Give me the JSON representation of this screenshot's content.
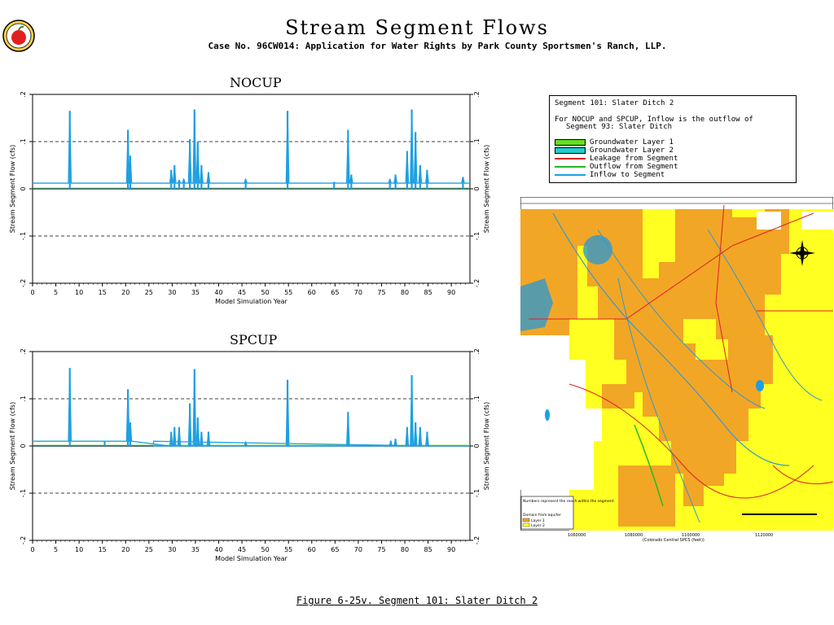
{
  "header": {
    "title": "Stream Segment Flows",
    "subtitle": "Case No. 96CW014: Application for Water Rights by Park County Sportsmen's Ranch, LLP."
  },
  "logo_icon": "apple-seal-icon",
  "legend": {
    "line1": "Segment 101: Slater Ditch 2",
    "line2": "For NOCUP and SPCUP, Inflow is the outflow of",
    "line3": "Segment  93: Slater Ditch",
    "items": [
      {
        "label": "Groundwater Layer 1",
        "kind": "box",
        "color": "#66dd22"
      },
      {
        "label": "Groundwater Layer 2",
        "kind": "box",
        "color": "#22cccc"
      },
      {
        "label": "Leakage from Segment",
        "kind": "line",
        "color": "#dd2222"
      },
      {
        "label": "Outflow from Segment",
        "kind": "line",
        "color": "#22bb22"
      },
      {
        "label": "Inflow to Segment",
        "kind": "line",
        "color": "#1ea0e0"
      }
    ]
  },
  "caption": "Figure 6-25v.  Segment 101: Slater Ditch 2",
  "map": {
    "legend_text": "Numbers represent the reach within the segment.",
    "legend_text2": "Domain from aquifer",
    "legend_layer1": "Layer 1",
    "legend_layer2": "Layer 2",
    "xlabel": "(Colorado Central SPCS (feet))",
    "x_ticks": [
      "1060000",
      "1080000",
      "1100000",
      "1120000"
    ],
    "colors": {
      "layer1": "#f2a626",
      "layer2": "#ffff22",
      "water": "#3399cc",
      "roads": "#dd2222"
    }
  },
  "chart_data": [
    {
      "type": "line",
      "title": "NOCUP",
      "xlabel": "Model Simulation Year",
      "ylabel": "Stream Segment Flow (cfs)",
      "ylabel_right": "Stream Segment Flow (cfs)",
      "xlim": [
        0,
        94
      ],
      "ylim": [
        -0.2,
        0.2
      ],
      "x_ticks": [
        0,
        5,
        10,
        15,
        20,
        25,
        30,
        35,
        40,
        45,
        50,
        55,
        60,
        65,
        70,
        75,
        80,
        85,
        90
      ],
      "y_ticks": [
        ".2",
        ".1",
        "0",
        "-.1",
        "-.2"
      ],
      "dashed_lines": [
        0.1,
        -0.1
      ],
      "baseline": 0.012,
      "series": [
        {
          "name": "Inflow to Segment",
          "color": "#1ea0e0",
          "spikes": [
            [
              8,
              0.165
            ],
            [
              20.5,
              0.125
            ],
            [
              21,
              0.07
            ],
            [
              29.8,
              0.04
            ],
            [
              30.5,
              0.05
            ],
            [
              31.5,
              0.018
            ],
            [
              32.5,
              0.02
            ],
            [
              33.8,
              0.105
            ],
            [
              34.8,
              0.168
            ],
            [
              35.5,
              0.1
            ],
            [
              36.3,
              0.05
            ],
            [
              37.8,
              0.035
            ],
            [
              45.8,
              0.02
            ],
            [
              54.8,
              0.165
            ],
            [
              64.8,
              0.014
            ],
            [
              67.8,
              0.125
            ],
            [
              68.5,
              0.03
            ],
            [
              76.8,
              0.02
            ],
            [
              78,
              0.03
            ],
            [
              80.5,
              0.08
            ],
            [
              81.5,
              0.168
            ],
            [
              82.3,
              0.12
            ],
            [
              83.3,
              0.05
            ],
            [
              84.8,
              0.04
            ],
            [
              92.5,
              0.025
            ]
          ]
        },
        {
          "name": "Groundwater Layer 1",
          "color": "#66dd22",
          "flat": 0
        }
      ]
    },
    {
      "type": "line",
      "title": "SPCUP",
      "xlabel": "Model Simulation Year",
      "ylabel": "Stream Segment Flow (cfs)",
      "ylabel_right": "Stream Segment Flow (cfs)",
      "xlim": [
        0,
        94
      ],
      "ylim": [
        -0.2,
        0.2
      ],
      "x_ticks": [
        0,
        5,
        10,
        15,
        20,
        25,
        30,
        35,
        40,
        45,
        50,
        55,
        60,
        65,
        70,
        75,
        80,
        85,
        90
      ],
      "y_ticks": [
        ".2",
        ".1",
        "0",
        "-.1",
        "-.2"
      ],
      "dashed_lines": [
        0.1,
        -0.1
      ],
      "baseline": 0.01,
      "baseline_end": 26,
      "series": [
        {
          "name": "Inflow to Segment",
          "color": "#1ea0e0",
          "spikes": [
            [
              8,
              0.165
            ],
            [
              15.5,
              0.01
            ],
            [
              20.5,
              0.12
            ],
            [
              21,
              0.05
            ],
            [
              29.8,
              0.03
            ],
            [
              30.5,
              0.04
            ],
            [
              31.5,
              0.04
            ],
            [
              33.8,
              0.09
            ],
            [
              34.8,
              0.163
            ],
            [
              35.5,
              0.06
            ],
            [
              36.3,
              0.03
            ],
            [
              37.8,
              0.03
            ],
            [
              45.8,
              0.008
            ],
            [
              54.8,
              0.14
            ],
            [
              67.8,
              0.072
            ],
            [
              77,
              0.01
            ],
            [
              78,
              0.015
            ],
            [
              80.5,
              0.04
            ],
            [
              81.5,
              0.15
            ],
            [
              82.3,
              0.05
            ],
            [
              83.3,
              0.04
            ],
            [
              84.8,
              0.03
            ]
          ]
        },
        {
          "name": "Groundwater Layer 1",
          "color": "#66dd22",
          "flat": 0
        }
      ]
    }
  ]
}
